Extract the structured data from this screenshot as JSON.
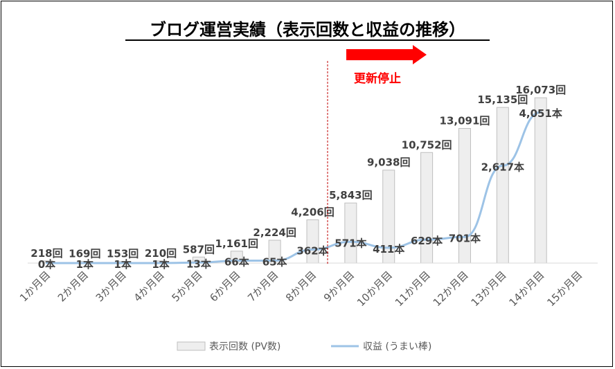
{
  "chart_data": {
    "type": "bar",
    "title": "ブログ運営実績（表示回数と収益の推移）",
    "categories": [
      "1か月目",
      "2か月目",
      "3か月目",
      "4か月目",
      "5か月目",
      "6か月目",
      "7か月目",
      "8か月目",
      "9か月目",
      "10か月目",
      "11か月目",
      "12か月目",
      "13か月目",
      "14か月目",
      "15か月目"
    ],
    "series": [
      {
        "name": "表示回数 (PV数)",
        "type": "bar",
        "values": [
          218,
          169,
          153,
          210,
          587,
          1161,
          2224,
          4206,
          5843,
          9038,
          10752,
          13091,
          15135,
          16073,
          null
        ],
        "labels": [
          "218回",
          "169回",
          "153回",
          "210回",
          "587回",
          "1,161回",
          "2,224回",
          "4,206回",
          "5,843回",
          "9,038回",
          "10,752回",
          "13,091回",
          "15,135回",
          "16,073回",
          ""
        ],
        "color": "#eeeeee"
      },
      {
        "name": "収益 (うまい棒)",
        "type": "line",
        "values": [
          0,
          1,
          1,
          1,
          13,
          66,
          65,
          362,
          571,
          411,
          629,
          701,
          2617,
          4051,
          null
        ],
        "labels": [
          "0本",
          "1本",
          "1本",
          "1本",
          "13本",
          "66本",
          "65本",
          "362本",
          "571本",
          "411本",
          "629本",
          "701本",
          "2,617本",
          "4,051本",
          ""
        ],
        "color": "#9dc3e6"
      }
    ],
    "annotation": {
      "text": "更新停止",
      "color": "#ff0000"
    },
    "grid": false,
    "legend_position": "bottom"
  }
}
